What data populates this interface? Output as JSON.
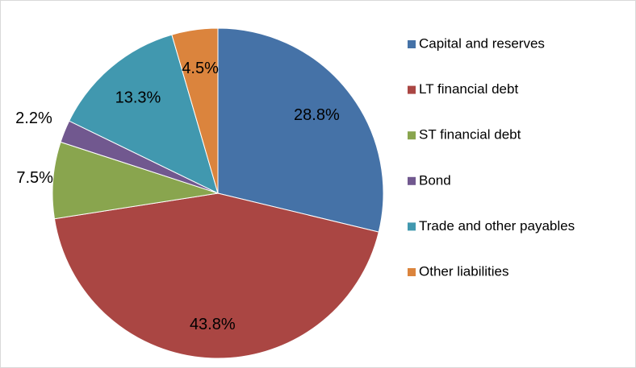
{
  "chart_data": {
    "type": "pie",
    "categories": [
      "Capital and reserves",
      "LT financial debt",
      "ST financial debt",
      "Bond",
      "Trade and other payables",
      "Other liabilities"
    ],
    "values": [
      28.8,
      43.8,
      7.5,
      2.2,
      13.3,
      4.5
    ],
    "value_labels": [
      "28.8%",
      "43.8%",
      "7.5%",
      "2.2%",
      "13.3%",
      "4.5%"
    ],
    "colors": [
      "#4572a7",
      "#aa4643",
      "#89a54e",
      "#71588f",
      "#4198af",
      "#db843d"
    ],
    "legend": "right"
  }
}
